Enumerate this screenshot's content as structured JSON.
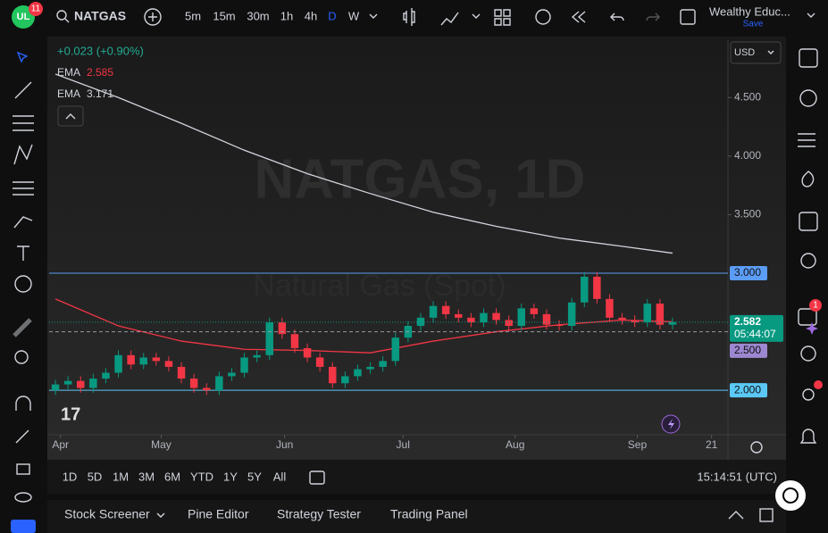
{
  "header": {
    "badge": "11",
    "symbol": "NATGAS",
    "timeframes": [
      "5m",
      "15m",
      "30m",
      "1h",
      "4h",
      "D",
      "W"
    ],
    "active_timeframe": 5,
    "account": "Wealthy Educ...",
    "save": "Save"
  },
  "legend": {
    "change": "+0.023 (+0.90%)"
  },
  "watermark": {
    "symbol": "NATGAS, 1D",
    "description": "Natural Gas (Spot)"
  },
  "currency": "USD",
  "chart_data": {
    "type": "candlestick",
    "up_color": "#089981",
    "down_color": "#f23645",
    "open": [
      2.0,
      2.05,
      2.08,
      2.02,
      2.1,
      2.15,
      2.3,
      2.22,
      2.28,
      2.25,
      2.2,
      2.1,
      2.02,
      2.0,
      2.12,
      2.15,
      2.28,
      2.3,
      2.58,
      2.48,
      2.36,
      2.28,
      2.2,
      2.06,
      2.12,
      2.18,
      2.2,
      2.25,
      2.45,
      2.55,
      2.62,
      2.72,
      2.65,
      2.62,
      2.58,
      2.66,
      2.6,
      2.55,
      2.7,
      2.65,
      2.56,
      2.55,
      2.75,
      2.97,
      2.78,
      2.62,
      2.6,
      2.58,
      2.74,
      2.56
    ],
    "high": [
      2.09,
      2.12,
      2.12,
      2.14,
      2.19,
      2.34,
      2.34,
      2.32,
      2.32,
      2.29,
      2.24,
      2.14,
      2.06,
      2.16,
      2.19,
      2.32,
      2.34,
      2.62,
      2.62,
      2.52,
      2.4,
      2.32,
      2.24,
      2.16,
      2.22,
      2.24,
      2.29,
      2.49,
      2.59,
      2.66,
      2.76,
      2.76,
      2.69,
      2.66,
      2.7,
      2.7,
      2.64,
      2.74,
      2.74,
      2.69,
      2.6,
      2.79,
      3.01,
      3.01,
      2.82,
      2.66,
      2.64,
      2.78,
      2.78,
      2.62
    ],
    "low": [
      1.96,
      2.01,
      1.98,
      1.98,
      2.06,
      2.11,
      2.18,
      2.18,
      2.21,
      2.16,
      2.06,
      1.98,
      1.96,
      1.96,
      2.08,
      2.11,
      2.24,
      2.26,
      2.44,
      2.32,
      2.24,
      2.16,
      2.02,
      2.02,
      2.08,
      2.14,
      2.16,
      2.21,
      2.41,
      2.51,
      2.58,
      2.61,
      2.58,
      2.54,
      2.54,
      2.56,
      2.51,
      2.51,
      2.61,
      2.52,
      2.51,
      2.51,
      2.71,
      2.74,
      2.58,
      2.56,
      2.54,
      2.54,
      2.52,
      2.52
    ],
    "close": [
      2.05,
      2.08,
      2.02,
      2.1,
      2.15,
      2.3,
      2.22,
      2.28,
      2.25,
      2.2,
      2.1,
      2.02,
      2.0,
      2.12,
      2.15,
      2.28,
      2.3,
      2.58,
      2.48,
      2.36,
      2.28,
      2.2,
      2.06,
      2.12,
      2.18,
      2.2,
      2.25,
      2.45,
      2.55,
      2.62,
      2.72,
      2.65,
      2.62,
      2.58,
      2.66,
      2.6,
      2.55,
      2.7,
      2.65,
      2.56,
      2.55,
      2.75,
      2.97,
      2.78,
      2.62,
      2.6,
      2.58,
      2.74,
      2.56,
      2.582
    ],
    "series": [
      {
        "name": "EMA",
        "color": "#f23645",
        "x": [
          0,
          5,
          10,
          15,
          20,
          25,
          30,
          35,
          40,
          45,
          49
        ],
        "values": [
          2.78,
          2.55,
          2.42,
          2.35,
          2.34,
          2.32,
          2.42,
          2.5,
          2.56,
          2.6,
          2.585
        ]
      },
      {
        "name": "EMA",
        "color": "#d1d4dc",
        "x": [
          0,
          5,
          10,
          15,
          20,
          25,
          30,
          35,
          40,
          45,
          49
        ],
        "values": [
          4.7,
          4.5,
          4.28,
          4.05,
          3.85,
          3.68,
          3.52,
          3.4,
          3.3,
          3.23,
          3.171
        ]
      }
    ],
    "xlim": [
      -0.5,
      53.4
    ],
    "ylim": [
      1.62,
      4.99
    ],
    "yticks": [
      {
        "value": 3.5,
        "label": "3.500"
      },
      {
        "value": 4,
        "label": "4.000"
      },
      {
        "value": 4.5,
        "label": "4.500"
      }
    ],
    "xticks": [
      {
        "value": 0.4,
        "label": "Apr"
      },
      {
        "value": 8.4,
        "label": "May"
      },
      {
        "value": 18.2,
        "label": "Jun"
      },
      {
        "value": 27.6,
        "label": "Jul"
      },
      {
        "value": 36.5,
        "label": "Aug"
      },
      {
        "value": 46.2,
        "label": "Sep"
      },
      {
        "value": 52.1,
        "label": "21"
      }
    ],
    "hlines": [
      {
        "value": 3,
        "label": "3.000",
        "color": "#5b9cf6"
      },
      {
        "value": 2,
        "label": "2.000",
        "color": "#5bc8f6"
      }
    ],
    "price_label": {
      "value": 2.582,
      "label": "2.582",
      "countdown": "05:44:07",
      "color": "#089981"
    },
    "marker_label": {
      "value": 2.5,
      "label": "2.500",
      "color": "#9c88d0"
    }
  },
  "ranges": [
    "1D",
    "5D",
    "1M",
    "3M",
    "6M",
    "YTD",
    "1Y",
    "5Y",
    "All"
  ],
  "clock": "15:14:51 (UTC)",
  "tabs": [
    "Stock Screener",
    "Pine Editor",
    "Strategy Tester",
    "Trading Panel"
  ],
  "alerts_badge": "1"
}
